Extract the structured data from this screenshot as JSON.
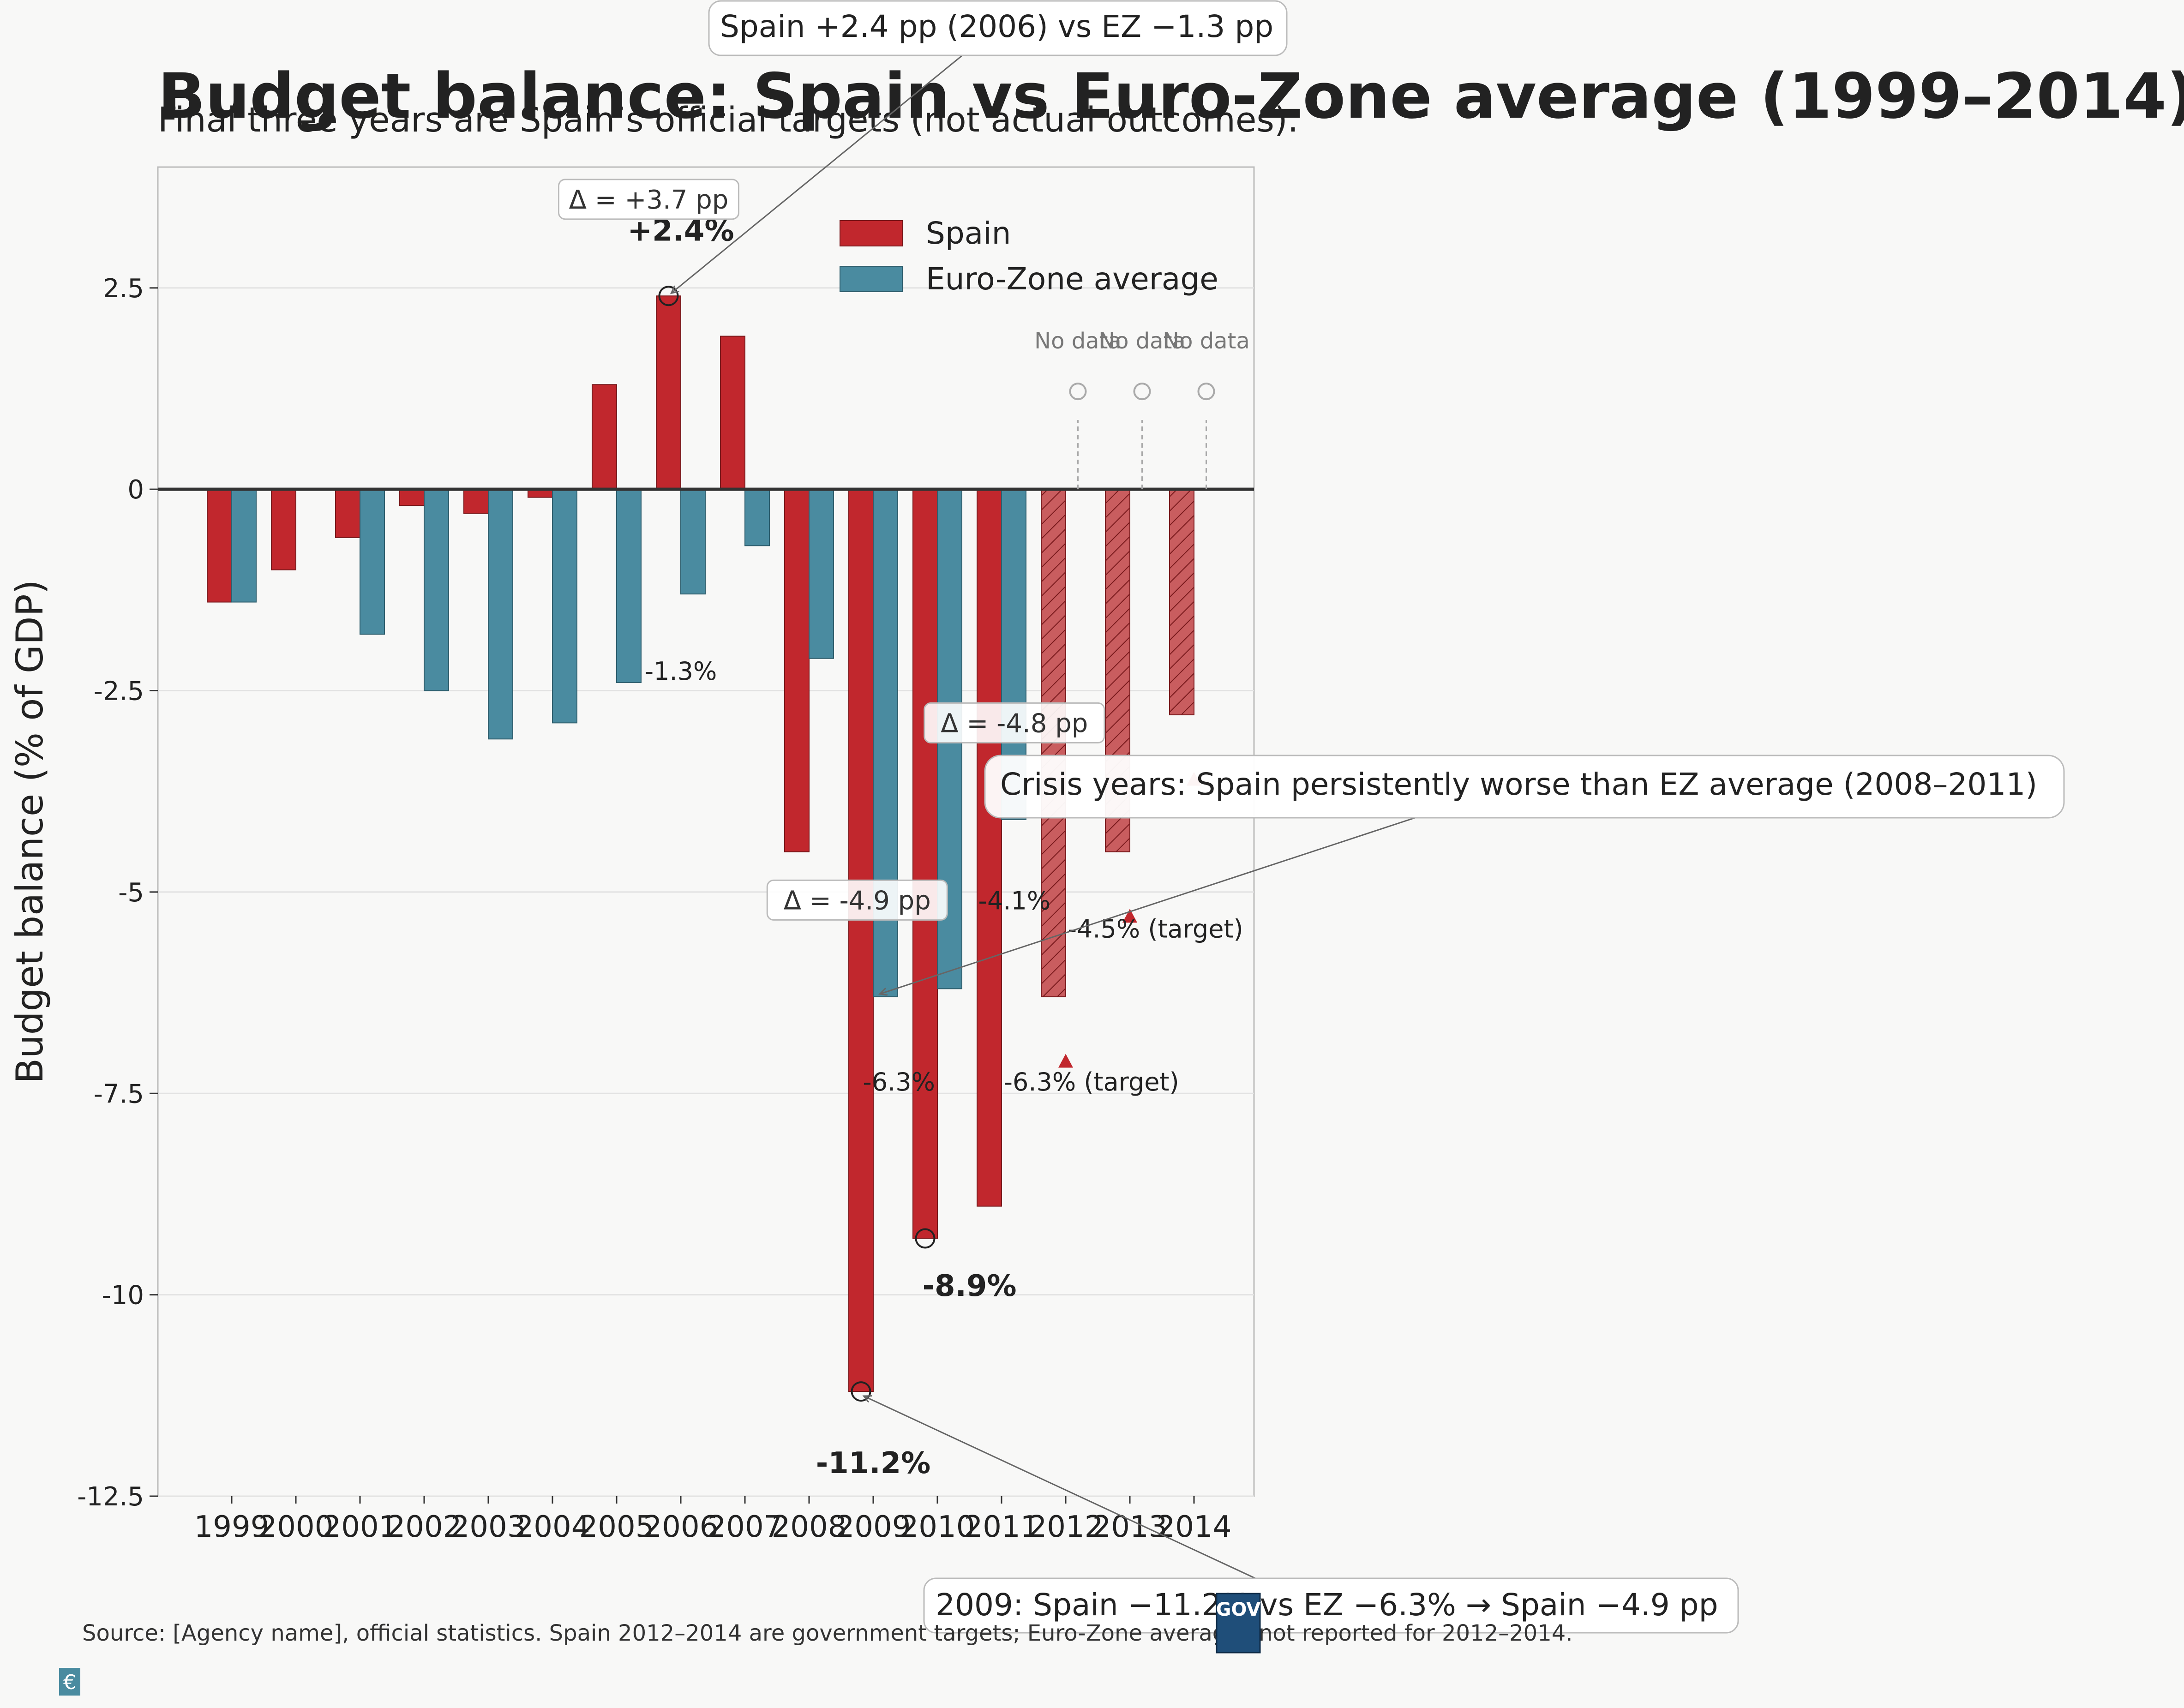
{
  "colors": {
    "spain": "#c1272d",
    "spain_target": "#c95d5f",
    "ez": "#4a8ba0",
    "background": "#f8f8f7",
    "badge": "#1f4e79"
  },
  "chart_data": {
    "type": "bar",
    "title": "Budget balance: Spain vs Euro-Zone average (1999–2014)",
    "subtitle": "Final three years are Spain’s official targets (not actual outcomes).",
    "ylabel": "Budget balance (% of GDP)",
    "xlabel": "",
    "ylim": [
      -12.5,
      4
    ],
    "yticks": [
      2.5,
      0,
      -2.5,
      -5,
      -7.5,
      -10,
      -12.5
    ],
    "ytick_labels": [
      "2.5",
      "0",
      "-2.5",
      "-5",
      "-7.5",
      "-10",
      "-12.5"
    ],
    "grid": "horizontal",
    "legend_placement": "top-center",
    "categories": [
      "1999",
      "2000",
      "2001",
      "2002",
      "2003",
      "2004",
      "2005",
      "2006",
      "2007",
      "2008",
      "2009",
      "2010",
      "2011",
      "2012",
      "2013",
      "2014"
    ],
    "series": [
      {
        "name": "Spain",
        "values": [
          -1.4,
          -1.0,
          -0.6,
          -0.2,
          -0.3,
          -0.1,
          1.3,
          2.4,
          1.9,
          -4.5,
          -11.2,
          -9.3,
          -8.9,
          -6.3,
          -4.5,
          -2.8
        ],
        "target_from_index": 13
      },
      {
        "name": "Euro-Zone average",
        "values": [
          -1.4,
          null,
          -1.8,
          -2.5,
          -3.1,
          -2.9,
          -2.4,
          -1.3,
          -0.7,
          -2.1,
          -6.3,
          -6.2,
          -4.1,
          null,
          null,
          null
        ]
      }
    ],
    "no_data_label": "No data",
    "no_data_indices": [
      13,
      14,
      15
    ],
    "target_markers": [
      {
        "index": 13,
        "y": -7.1
      },
      {
        "index": 14,
        "y": -5.3
      },
      {
        "index": 15,
        "y": -3.6
      }
    ],
    "data_labels": [
      {
        "text": "+2.4%",
        "index": 7,
        "y": 3.2,
        "bold": true
      },
      {
        "text": "-1.3%",
        "index": 7,
        "y": -2.25,
        "bold": false
      },
      {
        "text": "-8.9%",
        "index": 11.5,
        "y": -9.9,
        "bold": true
      },
      {
        "text": "-11.2%",
        "index": 10,
        "y": -12.1,
        "bold": true
      },
      {
        "text": "-6.3%",
        "index": 10.4,
        "y": -7.35,
        "bold": false
      },
      {
        "text": "-4.1%",
        "index": 12.2,
        "y": -5.1,
        "bold": false
      },
      {
        "text": "-6.3% (target)",
        "index": 13.4,
        "y": -7.35,
        "bold": false
      },
      {
        "text": "-4.5% (target)",
        "index": 14.4,
        "y": -5.45,
        "bold": false
      }
    ],
    "delta_boxes": [
      {
        "text": "Δ = +3.7 pp",
        "index": 6.5,
        "y": 3.6
      },
      {
        "text": "Δ = -4.8 pp",
        "index": 12.2,
        "y": -2.9
      },
      {
        "text": "Δ = -4.9 pp",
        "index": 9.75,
        "y": -5.1
      }
    ],
    "annotations": [
      {
        "text": "Spain +2.4 pp (2006) vs EZ −1.3 pp",
        "target_index": 7,
        "target_y": 2.4
      },
      {
        "text": "Crisis years: Spain persistently worse than EZ average (2008–2011)",
        "target_index": 10.25,
        "target_y": -6.3
      },
      {
        "text": "2009: Spain −11.2% vs EZ −6.3% → Spain −4.9 pp",
        "target_index": 10,
        "target_y": -11.2
      }
    ],
    "highlight_circles": [
      {
        "index": 7,
        "y": 2.4
      },
      {
        "index": 11,
        "y": -9.3
      },
      {
        "index": 10,
        "y": -11.2
      }
    ]
  },
  "footer": {
    "source": "Source: [Agency name], official statistics. Spain 2012–2014 are government targets; Euro-Zone averages not reported for 2012–2014.",
    "badge_text": "GOV",
    "euro_icon": "€"
  }
}
